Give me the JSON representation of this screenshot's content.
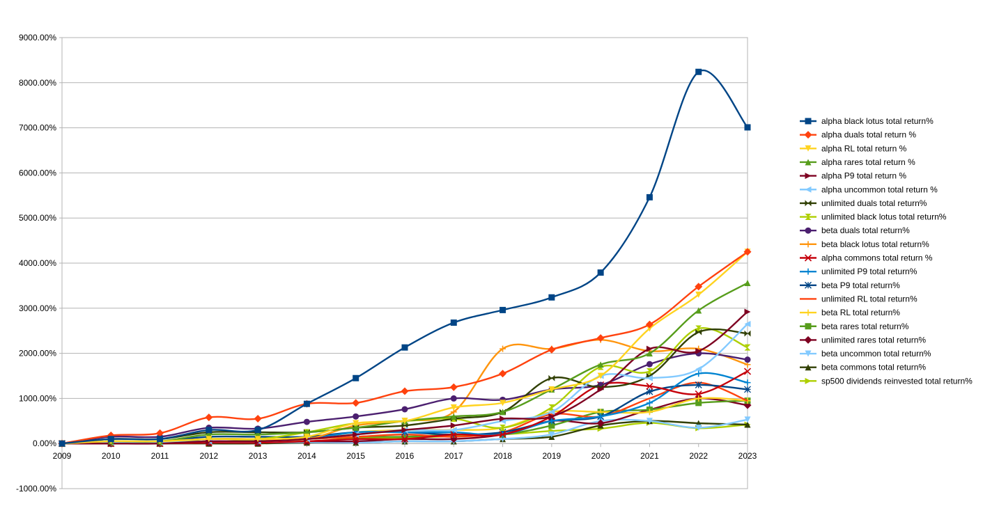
{
  "chart_data": {
    "type": "line",
    "title": "",
    "xlabel": "",
    "ylabel": "",
    "ylim": [
      -1000,
      9000
    ],
    "xlim": [
      2009,
      2023
    ],
    "grid": "horizontal",
    "legend_position": "right",
    "y_ticks": [
      "9000.00%",
      "8000.00%",
      "7000.00%",
      "6000.00%",
      "5000.00%",
      "4000.00%",
      "3000.00%",
      "2000.00%",
      "1000.00%",
      "0.00%",
      "-1000.00%"
    ],
    "x_ticks": [
      "2009",
      "2010",
      "2011",
      "2012",
      "2013",
      "2014",
      "2015",
      "2016",
      "2017",
      "2018",
      "2019",
      "2020",
      "2021",
      "2022",
      "2023"
    ],
    "x": [
      2009,
      2010,
      2011,
      2012,
      2013,
      2014,
      2015,
      2016,
      2017,
      2018,
      2019,
      2020,
      2021,
      2022,
      2023
    ],
    "series": [
      {
        "name": "alpha black lotus total return%",
        "color": "#004586",
        "marker": "square",
        "values": [
          0,
          100,
          100,
          300,
          300,
          880,
          1450,
          2130,
          2680,
          2960,
          3240,
          3790,
          5460,
          8240,
          7010
        ]
      },
      {
        "name": "alpha duals total return %",
        "color": "#ff420e",
        "marker": "diamond",
        "values": [
          0,
          180,
          230,
          580,
          550,
          880,
          900,
          1160,
          1250,
          1550,
          2080,
          2340,
          2640,
          3480,
          4250
        ]
      },
      {
        "name": "alpha RL total return %",
        "color": "#ffd320",
        "marker": "triangle-down",
        "values": [
          0,
          50,
          50,
          100,
          100,
          150,
          450,
          500,
          800,
          900,
          1200,
          1500,
          2550,
          3300,
          4250
        ]
      },
      {
        "name": "alpha rares total return %",
        "color": "#579d1c",
        "marker": "triangle-up",
        "values": [
          0,
          50,
          50,
          200,
          200,
          250,
          350,
          500,
          600,
          700,
          1200,
          1750,
          2000,
          2950,
          3560
        ]
      },
      {
        "name": "alpha P9 total return %",
        "color": "#7e0021",
        "marker": "triangle-right",
        "values": [
          0,
          0,
          0,
          50,
          50,
          100,
          200,
          300,
          400,
          550,
          600,
          1200,
          2100,
          2050,
          2920
        ]
      },
      {
        "name": "alpha uncommon total return %",
        "color": "#83caff",
        "marker": "triangle-left",
        "values": [
          0,
          20,
          20,
          50,
          50,
          100,
          200,
          300,
          300,
          500,
          700,
          1500,
          1450,
          1650,
          2650
        ]
      },
      {
        "name": "unlimited duals total return%",
        "color": "#314004",
        "marker": "bowtie",
        "values": [
          0,
          100,
          100,
          250,
          250,
          250,
          350,
          400,
          550,
          700,
          1450,
          1250,
          1500,
          2470,
          2440
        ]
      },
      {
        "name": "unlimited black lotus total return%",
        "color": "#aecf00",
        "marker": "hourglass",
        "values": [
          0,
          30,
          30,
          100,
          100,
          250,
          450,
          500,
          550,
          350,
          800,
          1700,
          1600,
          2550,
          2130
        ]
      },
      {
        "name": "beta duals total return%",
        "color": "#4b1f6f",
        "marker": "circle",
        "values": [
          0,
          150,
          150,
          350,
          330,
          480,
          600,
          760,
          1000,
          970,
          1200,
          1300,
          1760,
          2000,
          1860
        ]
      },
      {
        "name": "beta black lotus total return%",
        "color": "#ff950e",
        "marker": "plus",
        "values": [
          0,
          30,
          30,
          100,
          100,
          100,
          400,
          500,
          700,
          2100,
          2100,
          2300,
          2050,
          2100,
          1750
        ]
      },
      {
        "name": "alpha commons total return %",
        "color": "#c5000b",
        "marker": "cross",
        "values": [
          0,
          0,
          0,
          20,
          20,
          50,
          100,
          100,
          200,
          200,
          600,
          1300,
          1270,
          1100,
          1600
        ]
      },
      {
        "name": "unlimited P9 total return%",
        "color": "#0084d1",
        "marker": "plus",
        "values": [
          0,
          20,
          20,
          50,
          50,
          100,
          250,
          250,
          250,
          200,
          500,
          600,
          900,
          1550,
          1350
        ]
      },
      {
        "name": "beta P9 total return%",
        "color": "#004586",
        "marker": "asterisk",
        "values": [
          0,
          50,
          50,
          150,
          150,
          150,
          250,
          250,
          200,
          250,
          500,
          600,
          1150,
          1300,
          1200
        ]
      },
      {
        "name": "unlimited RL total return%",
        "color": "#ff420e",
        "marker": "none",
        "values": [
          0,
          20,
          20,
          50,
          50,
          100,
          150,
          200,
          150,
          250,
          650,
          600,
          1000,
          1350,
          950
        ]
      },
      {
        "name": "beta RL total return%",
        "color": "#ffd320",
        "marker": "plus",
        "values": [
          0,
          20,
          20,
          50,
          50,
          100,
          250,
          300,
          300,
          350,
          700,
          700,
          700,
          1000,
          950
        ]
      },
      {
        "name": "beta rares  total return%",
        "color": "#579d1c",
        "marker": "square",
        "values": [
          0,
          20,
          20,
          100,
          100,
          100,
          150,
          150,
          200,
          200,
          400,
          700,
          750,
          900,
          950
        ]
      },
      {
        "name": "unlimited rares total return%",
        "color": "#7e0021",
        "marker": "diamond",
        "values": [
          0,
          0,
          0,
          20,
          20,
          50,
          50,
          100,
          100,
          200,
          500,
          450,
          750,
          1000,
          850
        ]
      },
      {
        "name": "beta uncommon total return%",
        "color": "#83caff",
        "marker": "triangle-down",
        "values": [
          0,
          0,
          0,
          20,
          20,
          30,
          20,
          50,
          50,
          100,
          200,
          500,
          500,
          350,
          530
        ]
      },
      {
        "name": "beta commons total return%",
        "color": "#314004",
        "marker": "triangle-up",
        "values": [
          0,
          0,
          0,
          0,
          0,
          20,
          20,
          50,
          50,
          100,
          150,
          400,
          500,
          450,
          420
        ]
      },
      {
        "name": "sp500 dividends reinvested total return%",
        "color": "#aecf00",
        "marker": "triangle-right",
        "values": [
          0,
          20,
          20,
          40,
          80,
          120,
          120,
          130,
          160,
          200,
          280,
          330,
          460,
          340,
          420
        ]
      }
    ]
  }
}
